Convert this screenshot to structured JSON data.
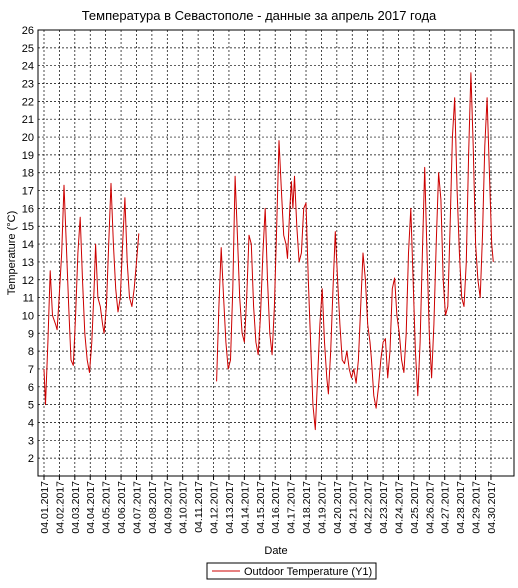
{
  "chart_data": {
    "type": "line",
    "title": "Температура в Севастополе - данные за апрель 2017 года",
    "xlabel": "Date",
    "ylabel": "Temperature (°C)",
    "ylim": [
      1,
      26
    ],
    "y_ticks": [
      2,
      3,
      4,
      5,
      6,
      7,
      8,
      9,
      10,
      11,
      12,
      13,
      14,
      15,
      16,
      17,
      18,
      19,
      20,
      21,
      22,
      23,
      24,
      25,
      26
    ],
    "xlim": [
      0,
      30.3
    ],
    "grid": true,
    "legend_position": "bottom",
    "x_ticks": [
      "04.01.2017",
      "04.02.2017",
      "04.03.2017",
      "04.04.2017",
      "04.05.2017",
      "04.06.2017",
      "04.07.2017",
      "04.08.2017",
      "04.09.2017",
      "04.10.2017",
      "04.11.2017",
      "04.12.2017",
      "04.13.2017",
      "04.14.2017",
      "04.15.2017",
      "04.16.2017",
      "04.17.2017",
      "04.18.2017",
      "04.19.2017",
      "04.20.2017",
      "04.21.2017",
      "04.22.2017",
      "04.23.2017",
      "04.24.2017",
      "04.25.2017",
      "04.26.2017",
      "04.27.2017",
      "04.28.2017",
      "04.29.2017",
      "04.30.2017"
    ],
    "series": [
      {
        "name": "Outdoor Temperature (Y1)",
        "color": "#cc0000",
        "segments": [
          [
            [
              0.0,
              7.0
            ],
            [
              0.1,
              5.0
            ],
            [
              0.25,
              8.5
            ],
            [
              0.4,
              12.5
            ],
            [
              0.55,
              10.0
            ],
            [
              0.75,
              9.5
            ],
            [
              0.85,
              9.2
            ],
            [
              0.95,
              10.5
            ],
            [
              1.15,
              13.5
            ],
            [
              1.3,
              17.3
            ],
            [
              1.45,
              14.0
            ],
            [
              1.6,
              10.5
            ],
            [
              1.75,
              7.5
            ],
            [
              1.9,
              7.2
            ],
            [
              2.05,
              10.0
            ],
            [
              2.2,
              13.5
            ],
            [
              2.35,
              15.5
            ],
            [
              2.5,
              12.0
            ],
            [
              2.65,
              9.0
            ],
            [
              2.8,
              7.5
            ],
            [
              2.95,
              6.8
            ],
            [
              3.1,
              8.5
            ],
            [
              3.25,
              11.5
            ],
            [
              3.35,
              14.0
            ],
            [
              3.5,
              11.0
            ],
            [
              3.65,
              10.5
            ],
            [
              3.8,
              9.5
            ],
            [
              3.9,
              9.0
            ],
            [
              4.05,
              10.5
            ],
            [
              4.2,
              14.0
            ],
            [
              4.35,
              17.4
            ],
            [
              4.5,
              14.0
            ],
            [
              4.65,
              11.5
            ],
            [
              4.8,
              10.2
            ],
            [
              4.95,
              11.0
            ],
            [
              5.1,
              14.0
            ],
            [
              5.25,
              16.6
            ],
            [
              5.4,
              13.0
            ],
            [
              5.55,
              11.0
            ],
            [
              5.7,
              10.5
            ],
            [
              5.85,
              11.5
            ],
            [
              6.0,
              13.0
            ],
            [
              6.15,
              14.6
            ]
          ],
          [
            [
              11.2,
              6.3
            ],
            [
              11.35,
              10.5
            ],
            [
              11.5,
              13.8
            ],
            [
              11.65,
              11.0
            ],
            [
              11.8,
              8.5
            ],
            [
              11.95,
              7.0
            ],
            [
              12.1,
              7.5
            ],
            [
              12.25,
              11.5
            ],
            [
              12.4,
              17.8
            ],
            [
              12.55,
              14.5
            ],
            [
              12.7,
              11.0
            ],
            [
              12.85,
              9.0
            ],
            [
              13.0,
              8.5
            ],
            [
              13.15,
              11.0
            ],
            [
              13.3,
              14.5
            ],
            [
              13.45,
              14.0
            ],
            [
              13.6,
              10.5
            ],
            [
              13.75,
              8.5
            ],
            [
              13.9,
              7.8
            ],
            [
              14.05,
              10.0
            ],
            [
              14.2,
              13.5
            ],
            [
              14.35,
              16.0
            ],
            [
              14.5,
              12.0
            ],
            [
              14.65,
              9.0
            ],
            [
              14.8,
              7.8
            ],
            [
              14.95,
              10.5
            ],
            [
              15.1,
              15.0
            ],
            [
              15.25,
              19.8
            ],
            [
              15.4,
              17.0
            ],
            [
              15.55,
              14.5
            ],
            [
              15.7,
              14.0
            ],
            [
              15.8,
              13.2
            ],
            [
              15.95,
              16.0
            ],
            [
              16.05,
              17.5
            ],
            [
              16.15,
              16.0
            ],
            [
              16.25,
              17.8
            ],
            [
              16.4,
              15.0
            ],
            [
              16.55,
              13.0
            ],
            [
              16.7,
              13.5
            ],
            [
              16.85,
              16.0
            ],
            [
              17.0,
              16.3
            ],
            [
              17.15,
              12.0
            ],
            [
              17.3,
              8.5
            ],
            [
              17.45,
              5.0
            ],
            [
              17.6,
              3.6
            ],
            [
              17.75,
              6.5
            ],
            [
              17.9,
              9.5
            ],
            [
              18.05,
              11.5
            ],
            [
              18.2,
              8.5
            ],
            [
              18.35,
              6.5
            ],
            [
              18.45,
              5.6
            ],
            [
              18.6,
              8.0
            ],
            [
              18.75,
              11.5
            ],
            [
              18.9,
              14.7
            ],
            [
              19.05,
              12.0
            ],
            [
              19.2,
              9.5
            ],
            [
              19.35,
              7.5
            ],
            [
              19.5,
              7.3
            ],
            [
              19.65,
              8.0
            ],
            [
              19.8,
              7.0
            ],
            [
              19.95,
              6.5
            ],
            [
              20.1,
              7.0
            ],
            [
              20.25,
              6.2
            ],
            [
              20.4,
              7.5
            ],
            [
              20.55,
              10.5
            ],
            [
              20.7,
              13.5
            ],
            [
              20.85,
              12.0
            ],
            [
              21.0,
              9.5
            ],
            [
              21.15,
              8.5
            ],
            [
              21.25,
              7.5
            ],
            [
              21.4,
              5.5
            ],
            [
              21.55,
              4.8
            ],
            [
              21.7,
              6.0
            ],
            [
              21.85,
              7.5
            ],
            [
              22.0,
              8.5
            ],
            [
              22.15,
              8.7
            ],
            [
              22.3,
              6.5
            ],
            [
              22.45,
              8.0
            ],
            [
              22.6,
              11.5
            ],
            [
              22.75,
              12.1
            ],
            [
              22.9,
              10.0
            ],
            [
              23.05,
              9.0
            ],
            [
              23.2,
              7.5
            ],
            [
              23.35,
              6.8
            ],
            [
              23.5,
              9.0
            ],
            [
              23.65,
              13.5
            ],
            [
              23.8,
              16.0
            ],
            [
              23.95,
              12.0
            ],
            [
              24.1,
              8.0
            ],
            [
              24.25,
              5.5
            ],
            [
              24.4,
              8.5
            ],
            [
              24.55,
              13.5
            ],
            [
              24.7,
              18.3
            ],
            [
              24.85,
              13.5
            ],
            [
              25.0,
              9.0
            ],
            [
              25.15,
              6.5
            ],
            [
              25.3,
              9.5
            ],
            [
              25.45,
              14.0
            ],
            [
              25.6,
              18.0
            ],
            [
              25.75,
              16.5
            ],
            [
              25.9,
              12.0
            ],
            [
              26.05,
              10.0
            ],
            [
              26.2,
              10.5
            ],
            [
              26.35,
              15.0
            ],
            [
              26.5,
              20.0
            ],
            [
              26.65,
              22.2
            ],
            [
              26.8,
              17.0
            ],
            [
              26.95,
              13.5
            ],
            [
              27.1,
              11.0
            ],
            [
              27.25,
              10.5
            ],
            [
              27.4,
              13.0
            ],
            [
              27.55,
              19.0
            ],
            [
              27.7,
              23.6
            ],
            [
              27.85,
              19.5
            ],
            [
              28.0,
              14.0
            ],
            [
              28.15,
              12.0
            ],
            [
              28.3,
              11.0
            ],
            [
              28.45,
              14.5
            ],
            [
              28.6,
              19.5
            ],
            [
              28.75,
              22.2
            ],
            [
              28.9,
              18.0
            ],
            [
              29.05,
              14.0
            ],
            [
              29.15,
              13.0
            ]
          ]
        ]
      }
    ]
  }
}
